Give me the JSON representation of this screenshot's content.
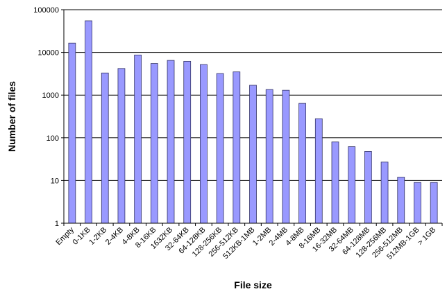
{
  "chart_data": {
    "type": "bar",
    "title": "",
    "xlabel": "File size",
    "ylabel": "Number of files",
    "yscale": "log",
    "ylim": [
      1,
      100000
    ],
    "yticks": [
      "1",
      "10",
      "100",
      "1000",
      "10000",
      "100000"
    ],
    "grid": "horizontal",
    "legend": "none",
    "bar_color": "#9999ff",
    "bar_edge_color": "#333366",
    "categories": [
      "Empty",
      "0-1KB",
      "1-2KB",
      "2-4KB",
      "4-8KB",
      "8-16KB",
      "1632KB",
      "32-64KB",
      "64-128KB",
      "128-256KB",
      "256-512KB",
      "512KB-1MB",
      "1-2MB",
      "2-4MB",
      "4-8MB",
      "8-16MB",
      "16-32MB",
      "32-64MB",
      "64-128MB",
      "128-256MB",
      "256-512MB",
      "512MB-1GB",
      "> 1GB"
    ],
    "values": [
      16500,
      55000,
      3300,
      4200,
      8700,
      5500,
      6500,
      6200,
      5200,
      3200,
      3500,
      1700,
      1350,
      1300,
      640,
      280,
      80,
      62,
      48,
      27,
      12,
      9,
      9
    ]
  }
}
